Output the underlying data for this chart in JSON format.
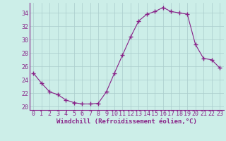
{
  "x": [
    0,
    1,
    2,
    3,
    4,
    5,
    6,
    7,
    8,
    9,
    10,
    11,
    12,
    13,
    14,
    15,
    16,
    17,
    18,
    19,
    20,
    21,
    22,
    23
  ],
  "y": [
    25.0,
    23.5,
    22.2,
    21.8,
    21.0,
    20.6,
    20.4,
    20.4,
    20.5,
    22.2,
    25.0,
    27.7,
    30.4,
    32.8,
    33.8,
    34.2,
    34.8,
    34.2,
    34.0,
    33.8,
    29.3,
    27.2,
    27.0,
    25.8
  ],
  "line_color": "#882288",
  "marker": "+",
  "marker_size": 4,
  "bg_color": "#cceee8",
  "grid_color": "#aacccc",
  "xlabel": "Windchill (Refroidissement éolien,°C)",
  "ylim": [
    19.5,
    35.5
  ],
  "yticks": [
    20,
    22,
    24,
    26,
    28,
    30,
    32,
    34
  ],
  "xlim": [
    -0.5,
    23.5
  ],
  "xticks": [
    0,
    1,
    2,
    3,
    4,
    5,
    6,
    7,
    8,
    9,
    10,
    11,
    12,
    13,
    14,
    15,
    16,
    17,
    18,
    19,
    20,
    21,
    22,
    23
  ],
  "xlabel_fontsize": 6.5,
  "tick_fontsize": 6.0,
  "tick_color": "#882288",
  "axis_color": "#882288",
  "spine_color": "#882288"
}
